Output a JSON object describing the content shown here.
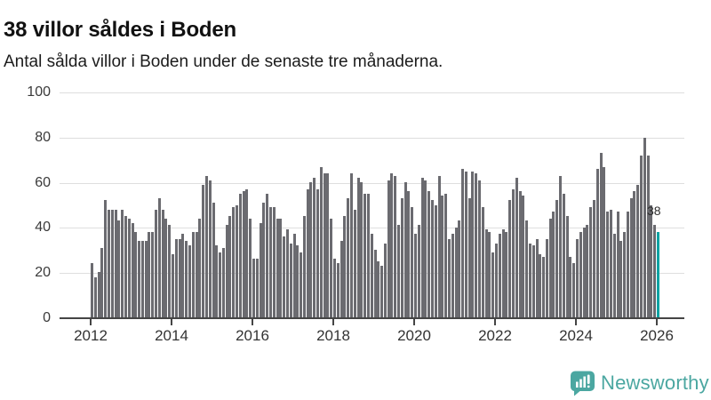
{
  "header": {
    "title": "38 villor såldes i Boden",
    "subtitle": "Antal sålda villor i Boden under de senaste tre månaderna."
  },
  "branding": {
    "logo_text": "Newsworthy",
    "logo_color": "#4BA7A1",
    "logo_icon": "bar-chart-speech-bubble"
  },
  "chart_data": {
    "type": "bar",
    "title": "38 villor såldes i Boden",
    "subtitle": "Antal sålda villor i Boden under de senaste tre månaderna.",
    "unit": "villor (rullande 3 månader)",
    "x_start": "2012-01",
    "x_end": "2026-01",
    "x_tick_labels": [
      "2012",
      "2014",
      "2016",
      "2018",
      "2020",
      "2022",
      "2024",
      "2026"
    ],
    "y_tick_labels": [
      "0",
      "20",
      "40",
      "60",
      "80",
      "100"
    ],
    "ylim": [
      0,
      100
    ],
    "grid": "horizontal",
    "bar_color": "#6B6B70",
    "highlight_color": "#0FA3A3",
    "highlight_index_last": true,
    "value_label": "38",
    "values": [
      24,
      18,
      20,
      31,
      52,
      48,
      48,
      48,
      43,
      48,
      45,
      44,
      42,
      38,
      34,
      34,
      34,
      38,
      38,
      48,
      53,
      48,
      44,
      41,
      28,
      35,
      35,
      37,
      34,
      32,
      38,
      38,
      44,
      59,
      63,
      61,
      51,
      32,
      29,
      31,
      41,
      45,
      49,
      50,
      55,
      56,
      57,
      44,
      26,
      26,
      42,
      51,
      55,
      49,
      49,
      44,
      44,
      36,
      39,
      33,
      37,
      32,
      29,
      45,
      57,
      60,
      62,
      57,
      67,
      64,
      64,
      44,
      26,
      24,
      34,
      45,
      53,
      64,
      48,
      62,
      60,
      55,
      55,
      37,
      30,
      25,
      23,
      33,
      61,
      64,
      63,
      41,
      53,
      60,
      56,
      49,
      37,
      41,
      62,
      61,
      56,
      52,
      50,
      63,
      54,
      55,
      35,
      37,
      40,
      43,
      66,
      65,
      53,
      65,
      64,
      61,
      49,
      39,
      38,
      29,
      33,
      37,
      39,
      38,
      52,
      57,
      62,
      56,
      54,
      43,
      33,
      32,
      35,
      28,
      27,
      35,
      44,
      47,
      52,
      63,
      55,
      45,
      27,
      24,
      35,
      38,
      40,
      41,
      49,
      52,
      66,
      73,
      67,
      47,
      48,
      37,
      47,
      34,
      38,
      47,
      53,
      56,
      59,
      72,
      80,
      72,
      50,
      41,
      38
    ]
  }
}
